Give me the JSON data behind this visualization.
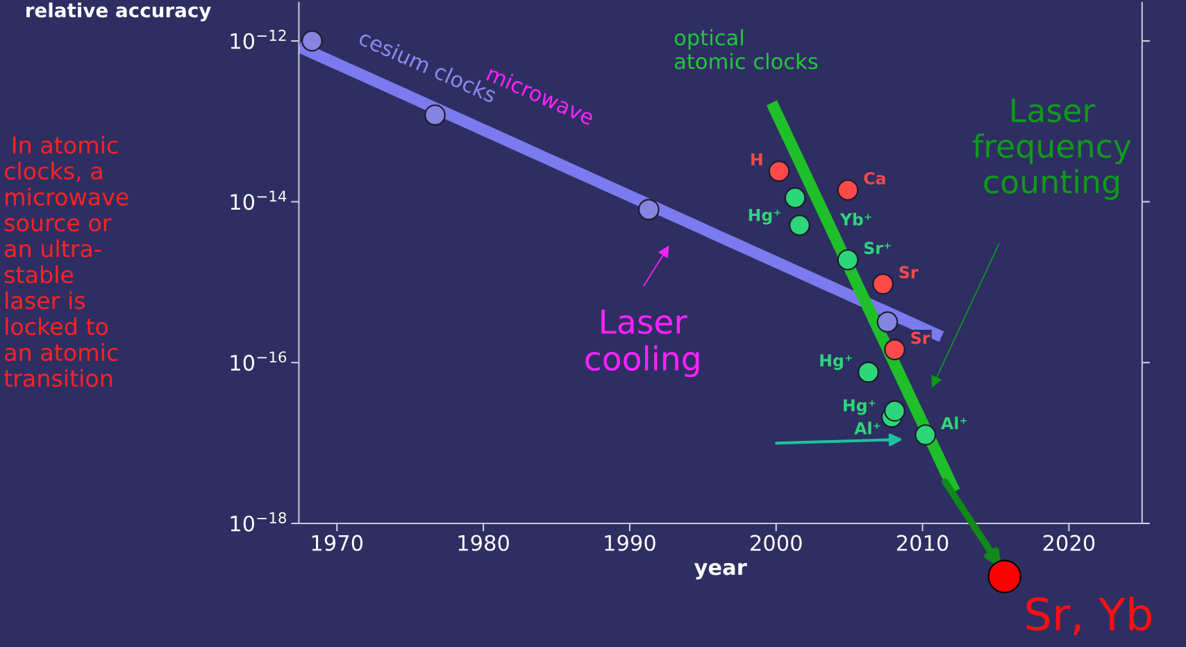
{
  "chart_data": {
    "type": "scatter",
    "xlabel": "year",
    "ylabel": "relative accuracy",
    "log": "y",
    "xlim": [
      1967.4,
      2025
    ],
    "xticks": [
      1970,
      1980,
      1990,
      2000,
      2010,
      2020
    ],
    "ylim": [
      1e-18,
      3e-12
    ],
    "yticks": [
      {
        "value": 1e-18,
        "label": "10$^{−18}$"
      },
      {
        "value": 1e-16,
        "label": "10$^{−16}$"
      },
      {
        "value": 1e-14,
        "label": "10$^{−14}$"
      },
      {
        "value": 1e-12,
        "label": "10$^{−12}$"
      }
    ],
    "grid": false,
    "marker": "circle",
    "series": [
      {
        "type": "line",
        "marker": "none",
        "color": "#7b7bef",
        "x": [
          1967.4,
          2011.3
        ],
        "values": [
          8.5e-13,
          2.1e-16
        ]
      },
      {
        "type": "line",
        "marker": "none",
        "color": "#1fbf2a",
        "x": [
          1999.7,
          2012.2
        ],
        "values": [
          1.7e-13,
          2.5e-18
        ]
      },
      {
        "color": "#8585e0",
        "x": [
          1968.3,
          1976.7,
          1991.3,
          2007.6
        ],
        "values": [
          1e-12,
          1.2e-13,
          8e-15,
          3.2e-16
        ]
      },
      {
        "color": "#ff4a4a",
        "x": [
          2000.2,
          2004.9,
          2007.3,
          2008.1
        ],
        "values": [
          2.4e-14,
          1.4e-14,
          9.5e-16,
          1.45e-16
        ],
        "value_labels": [
          "H",
          "Ca",
          "Sr",
          "Sr"
        ]
      },
      {
        "color": "#2ed67a",
        "x": [
          2001.3,
          2001.6,
          2004.9,
          2006.3,
          2007.9,
          2008.1,
          2010.2
        ],
        "values": [
          1.12e-14,
          5.1e-15,
          1.9e-15,
          7.6e-17,
          2.1e-17,
          2.5e-17,
          1.26e-17
        ],
        "value_labels": [
          "Hg⁺",
          "Yb⁺",
          "Sr⁺",
          "Hg⁺",
          "Hg⁺",
          "Al⁺",
          "Al⁺"
        ]
      }
    ],
    "annotations": [
      "cesium clocks",
      "microwave",
      "optical\natomic clocks",
      "Laser\ncooling",
      "Laser\nfrequency\ncounting",
      " In atomic\nclocks, a\nmicrowave\nsource or\nan ultra-\nstable\nlaser is\nlocked to\nan atomic\ntransition",
      "Sr, Yb"
    ]
  }
}
